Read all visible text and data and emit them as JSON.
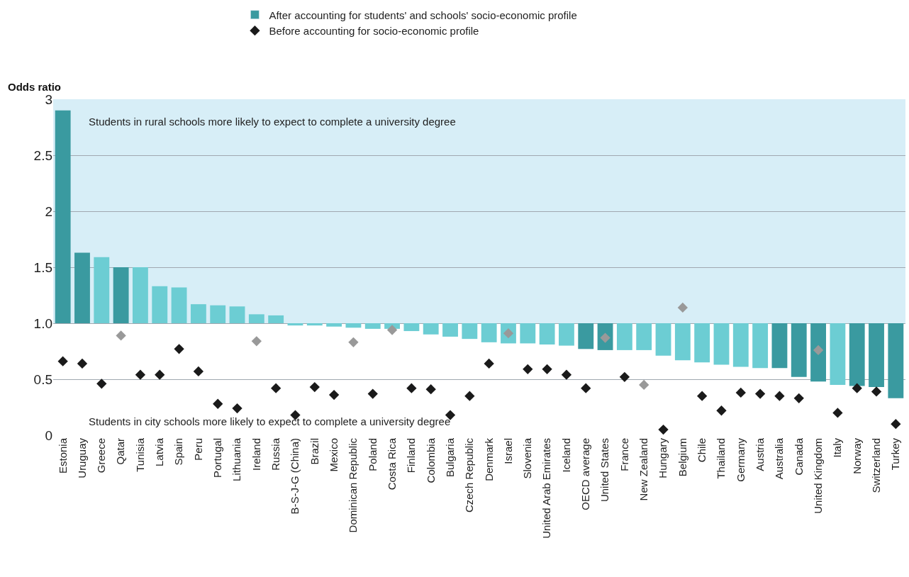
{
  "chart_data": {
    "type": "bar",
    "ylabel": "Odds ratio",
    "categories": [
      "Estonia",
      "Uruguay",
      "Greece",
      "Qatar",
      "Tunisia",
      "Latvia",
      "Spain",
      "Peru",
      "Portugal",
      "Lithuania",
      "Ireland",
      "Russia",
      "B-S-J-G (China)",
      "Brazil",
      "Mexico",
      "Dominican Republic",
      "Poland",
      "Costa Rica",
      "Finland",
      "Colombia",
      "Bulgaria",
      "Czech Republic",
      "Denmark",
      "Israel",
      "Slovenia",
      "United Arab Emirates",
      "Iceland",
      "OECD average",
      "United States",
      "France",
      "New Zealand",
      "Hungary",
      "Belgium",
      "Chile",
      "Thailand",
      "Germany",
      "Austria",
      "Australia",
      "Canada",
      "United Kingdom",
      "Italy",
      "Norway",
      "Switzerland",
      "Turkey"
    ],
    "series": [
      {
        "name": "After accounting for students' and schools' socio-economic profile",
        "color": "#3a9aa0",
        "base": [
          1,
          1,
          1,
          1,
          1,
          1,
          1,
          1,
          1,
          1,
          1,
          1,
          1,
          1,
          1,
          1,
          1,
          1,
          1,
          1,
          1,
          1,
          1,
          1,
          1,
          1,
          1,
          1,
          1,
          1,
          1,
          1,
          1,
          1,
          1,
          1,
          1,
          1,
          1,
          1,
          1,
          1,
          1,
          1
        ],
        "values": [
          1.9,
          0.63,
          0.59,
          0.5,
          0.5,
          0.33,
          0.32,
          0.17,
          0.16,
          0.15,
          0.08,
          0.07,
          -0.02,
          -0.02,
          -0.03,
          -0.04,
          -0.05,
          -0.05,
          -0.07,
          -0.1,
          -0.12,
          -0.14,
          -0.17,
          -0.18,
          -0.18,
          -0.19,
          -0.2,
          -0.23,
          -0.24,
          -0.24,
          -0.24,
          -0.29,
          -0.33,
          -0.35,
          -0.37,
          -0.39,
          -0.4,
          -0.4,
          -0.48,
          -0.52,
          -0.55,
          -0.56,
          -0.57,
          -0.67
        ],
        "colors": [
          "#3a9aa0",
          "#3a9aa0",
          "#6ccdd3",
          "#3a9aa0",
          "#6ccdd3",
          "#6ccdd3",
          "#6ccdd3",
          "#6ccdd3",
          "#6ccdd3",
          "#6ccdd3",
          "#6ccdd3",
          "#6ccdd3",
          "#6ccdd3",
          "#6ccdd3",
          "#6ccdd3",
          "#6ccdd3",
          "#6ccdd3",
          "#6ccdd3",
          "#6ccdd3",
          "#6ccdd3",
          "#6ccdd3",
          "#6ccdd3",
          "#6ccdd3",
          "#6ccdd3",
          "#6ccdd3",
          "#6ccdd3",
          "#6ccdd3",
          "#3a9aa0",
          "#3a9aa0",
          "#6ccdd3",
          "#6ccdd3",
          "#6ccdd3",
          "#6ccdd3",
          "#6ccdd3",
          "#6ccdd3",
          "#6ccdd3",
          "#6ccdd3",
          "#3a9aa0",
          "#3a9aa0",
          "#3a9aa0",
          "#6ccdd3",
          "#3a9aa0",
          "#3a9aa0",
          "#3a9aa0"
        ]
      },
      {
        "name": "Before accounting for socio-economic profile",
        "type": "scatter",
        "marker": "diamond",
        "color": "#1a1a1a",
        "values": [
          0.66,
          0.64,
          0.46,
          0.89,
          0.54,
          0.54,
          0.77,
          0.57,
          0.28,
          0.24,
          0.84,
          0.42,
          0.18,
          0.43,
          0.36,
          0.83,
          0.37,
          0.94,
          0.42,
          0.41,
          0.18,
          0.35,
          0.64,
          0.91,
          0.59,
          0.59,
          0.54,
          0.42,
          0.87,
          0.52,
          0.45,
          0.05,
          1.14,
          0.35,
          0.22,
          0.38,
          0.37,
          0.35,
          0.33,
          0.76,
          0.2,
          0.42,
          0.39,
          0.1
        ],
        "colors": [
          "#1a1a1a",
          "#1a1a1a",
          "#1a1a1a",
          "#999999",
          "#1a1a1a",
          "#1a1a1a",
          "#1a1a1a",
          "#1a1a1a",
          "#1a1a1a",
          "#1a1a1a",
          "#999999",
          "#1a1a1a",
          "#1a1a1a",
          "#1a1a1a",
          "#1a1a1a",
          "#999999",
          "#1a1a1a",
          "#999999",
          "#1a1a1a",
          "#1a1a1a",
          "#1a1a1a",
          "#1a1a1a",
          "#1a1a1a",
          "#999999",
          "#1a1a1a",
          "#1a1a1a",
          "#1a1a1a",
          "#1a1a1a",
          "#999999",
          "#1a1a1a",
          "#999999",
          "#1a1a1a",
          "#999999",
          "#1a1a1a",
          "#1a1a1a",
          "#1a1a1a",
          "#1a1a1a",
          "#1a1a1a",
          "#1a1a1a",
          "#999999",
          "#1a1a1a",
          "#1a1a1a",
          "#1a1a1a",
          "#1a1a1a"
        ]
      }
    ],
    "ylim": [
      0,
      3
    ],
    "yticks": [
      0,
      0.5,
      {
        "value": 1,
        "label": "1.0"
      },
      1.5,
      2,
      2.5,
      3
    ],
    "grid": "y",
    "legend": "top",
    "bands": [
      {
        "axis": "y",
        "from": 1,
        "to": 3,
        "label": "Students in rural schools more likely to expect to complete a university degree",
        "color": "#d7eef7"
      }
    ],
    "annotations": [
      "Students in city schools more likely to expect to complete a university degree"
    ]
  }
}
